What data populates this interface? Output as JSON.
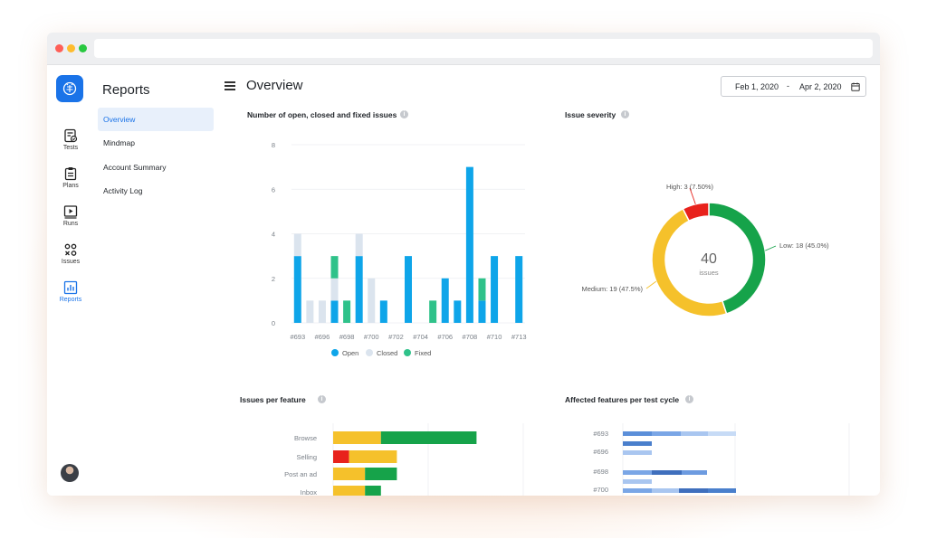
{
  "rail": {
    "items": [
      {
        "label": "Tests",
        "icon": "tests-icon"
      },
      {
        "label": "Plans",
        "icon": "clipboard-icon"
      },
      {
        "label": "Runs",
        "icon": "play-icon"
      },
      {
        "label": "Issues",
        "icon": "issues-icon"
      },
      {
        "label": "Reports",
        "icon": "bar-chart-icon",
        "active": true
      }
    ]
  },
  "subnav": {
    "title": "Reports",
    "items": [
      {
        "label": "Overview",
        "active": true
      },
      {
        "label": "Mindmap"
      },
      {
        "label": "Account Summary"
      },
      {
        "label": "Activity Log"
      }
    ]
  },
  "header": {
    "title": "Overview",
    "date_from": "Feb 1, 2020",
    "date_sep": "-",
    "date_to": "Apr 2, 2020"
  },
  "colors": {
    "accent": "#1a73e8",
    "open": "#0ea5e9",
    "closed": "#dbe4ee",
    "fixed": "#2fc28a",
    "high": "#e8221c",
    "medium": "#f5c12b",
    "low": "#16a34a"
  },
  "cards": {
    "issues_chart_title": "Number of open, closed and fixed issues",
    "severity_title": "Issue severity",
    "per_feature_title": "Issues per feature",
    "affected_title": "Affected features per test cycle"
  },
  "chart_data": [
    {
      "type": "bar",
      "title": "Number of open, closed and fixed issues",
      "ylim": [
        0,
        8
      ],
      "yticks": [
        0,
        2,
        4,
        6,
        8
      ],
      "x_tick_labels": [
        "#693",
        "#696",
        "#698",
        "#700",
        "#702",
        "#704",
        "#706",
        "#708",
        "#710",
        "#713"
      ],
      "legend": [
        "Open",
        "Closed",
        "Fixed"
      ],
      "legend_position": "bottom",
      "stacked": true,
      "series": [
        {
          "name": "Open",
          "values": [
            3,
            0,
            0,
            1,
            0,
            3,
            0,
            1,
            0,
            3,
            0,
            0,
            2,
            1,
            7,
            1,
            3,
            0,
            3
          ]
        },
        {
          "name": "Closed",
          "values": [
            1,
            1,
            1,
            1,
            0,
            1,
            2,
            0,
            0,
            0,
            0,
            0,
            0,
            0,
            0,
            0,
            0,
            0,
            0
          ]
        },
        {
          "name": "Fixed",
          "values": [
            0,
            0,
            0,
            1,
            1,
            0,
            0,
            0,
            0,
            0,
            0,
            1,
            0,
            0,
            0,
            1,
            0,
            0,
            0
          ]
        }
      ]
    },
    {
      "type": "pie",
      "title": "Issue severity",
      "total": "40",
      "total_label": "issues",
      "slices": [
        {
          "name": "Low",
          "value": 18,
          "percent": "45.0%",
          "label": "Low: 18 (45.0%)"
        },
        {
          "name": "Medium",
          "value": 19,
          "percent": "47.5%",
          "label": "Medium: 19 (47.5%)"
        },
        {
          "name": "High",
          "value": 3,
          "percent": "7.50%",
          "label": "High: 3 (7.50%)"
        }
      ]
    },
    {
      "type": "bar",
      "orientation": "horizontal",
      "title": "Issues per feature",
      "categories": [
        "Browse",
        "Selling",
        "Post an ad",
        "Inbox"
      ],
      "series": [
        {
          "name": "High",
          "values": [
            0,
            1,
            0,
            0
          ]
        },
        {
          "name": "Medium",
          "values": [
            3,
            3,
            2,
            2
          ]
        },
        {
          "name": "Low",
          "values": [
            6,
            0,
            2,
            1
          ]
        }
      ]
    },
    {
      "type": "bar",
      "orientation": "horizontal",
      "title": "Affected features per test cycle",
      "categories": [
        "#693",
        "#696",
        "#698",
        "#700"
      ]
    }
  ]
}
